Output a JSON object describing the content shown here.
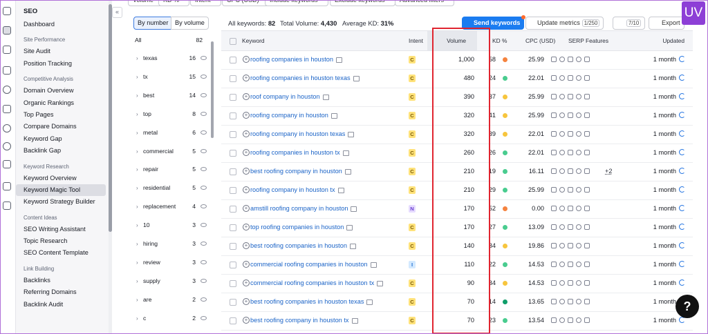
{
  "top_filters": [
    "Volume",
    "KD %",
    "Intent",
    "CPC (USD)",
    "Include keywords",
    "Exclude keywords",
    "Advanced filters"
  ],
  "sidebar": {
    "title": "SEO",
    "top_item": "Dashboard",
    "sections": [
      {
        "heading": "Site Performance",
        "items": [
          "Site Audit",
          "Position Tracking"
        ]
      },
      {
        "heading": "Competitive Analysis",
        "items": [
          "Domain Overview",
          "Organic Rankings",
          "Top Pages",
          "Compare Domains",
          "Keyword Gap",
          "Backlink Gap"
        ]
      },
      {
        "heading": "Keyword Research",
        "items": [
          "Keyword Overview",
          "Keyword Magic Tool",
          "Keyword Strategy Builder"
        ]
      },
      {
        "heading": "Content Ideas",
        "items": [
          "SEO Writing Assistant",
          "Topic Research",
          "SEO Content Template"
        ]
      },
      {
        "heading": "Link Building",
        "items": [
          "Backlinks",
          "Referring Domains",
          "Backlink Audit"
        ]
      }
    ],
    "active": "Keyword Magic Tool"
  },
  "groups": {
    "tabs": [
      "By number",
      "By volume"
    ],
    "all_label": "All",
    "all_count": "82",
    "rows": [
      [
        "texas",
        "16"
      ],
      [
        "tx",
        "15"
      ],
      [
        "best",
        "14"
      ],
      [
        "top",
        "8"
      ],
      [
        "metal",
        "6"
      ],
      [
        "commercial",
        "5"
      ],
      [
        "repair",
        "5"
      ],
      [
        "residential",
        "5"
      ],
      [
        "replacement",
        "4"
      ],
      [
        "10",
        "3"
      ],
      [
        "hiring",
        "3"
      ],
      [
        "review",
        "3"
      ],
      [
        "supply",
        "3"
      ],
      [
        "are",
        "2"
      ],
      [
        "c",
        "2"
      ]
    ]
  },
  "summary": {
    "all_keywords_label": "All keywords:",
    "all_keywords": "82",
    "total_volume_label": "Total Volume:",
    "total_volume": "4,430",
    "avg_kd_label": "Average KD:",
    "avg_kd": "31%"
  },
  "toolbar": {
    "send": "Send keywords",
    "update": "Update metrics",
    "update_count": "1/250",
    "settings_count": "7/10",
    "export": "Export"
  },
  "table": {
    "columns": [
      "Keyword",
      "Intent",
      "Volume",
      "KD %",
      "CPC (USD)",
      "SERP Features",
      "Updated"
    ],
    "rows": [
      {
        "keyword": "roofing companies in houston",
        "intent": "C",
        "volume": "1,000",
        "kd": "58",
        "kd_color": "#f5833f",
        "cpc": "25.99",
        "updated": "1 month"
      },
      {
        "keyword": "roofing companies in houston texas",
        "intent": "C",
        "volume": "480",
        "kd": "24",
        "kd_color": "#49cc8f",
        "cpc": "22.01",
        "updated": "1 month"
      },
      {
        "keyword": "roof company in houston",
        "intent": "C",
        "volume": "390",
        "kd": "37",
        "kd_color": "#f7c53d",
        "cpc": "25.99",
        "updated": "1 month"
      },
      {
        "keyword": "roofing company in houston",
        "intent": "C",
        "volume": "320",
        "kd": "41",
        "kd_color": "#f7c53d",
        "cpc": "25.99",
        "updated": "1 month"
      },
      {
        "keyword": "roofing company in houston texas",
        "intent": "C",
        "volume": "320",
        "kd": "39",
        "kd_color": "#f7c53d",
        "cpc": "22.01",
        "updated": "1 month"
      },
      {
        "keyword": "roofing companies in houston tx",
        "intent": "C",
        "volume": "260",
        "kd": "26",
        "kd_color": "#49cc8f",
        "cpc": "22.01",
        "updated": "1 month"
      },
      {
        "keyword": "best roofing company in houston",
        "intent": "C",
        "volume": "210",
        "kd": "19",
        "kd_color": "#49cc8f",
        "cpc": "16.11",
        "serp_more": "+2",
        "updated": "1 month"
      },
      {
        "keyword": "roofing company in houston tx",
        "intent": "C",
        "volume": "210",
        "kd": "29",
        "kd_color": "#49cc8f",
        "cpc": "25.99",
        "updated": "1 month"
      },
      {
        "keyword": "amstill roofing company in houston",
        "intent": "N",
        "volume": "170",
        "kd": "52",
        "kd_color": "#f5833f",
        "cpc": "0.00",
        "updated": "1 month"
      },
      {
        "keyword": "top roofing companies in houston",
        "intent": "C",
        "volume": "170",
        "kd": "27",
        "kd_color": "#49cc8f",
        "cpc": "13.09",
        "updated": "1 month"
      },
      {
        "keyword": "best roofing companies in houston",
        "intent": "C",
        "volume": "140",
        "kd": "34",
        "kd_color": "#f7c53d",
        "cpc": "19.86",
        "updated": "1 month"
      },
      {
        "keyword": "commercial roofing companies in houston",
        "intent": "I",
        "volume": "110",
        "kd": "22",
        "kd_color": "#49cc8f",
        "cpc": "14.53",
        "updated": "1 month"
      },
      {
        "keyword": "commercial roofing companies in houston tx",
        "intent": "C",
        "volume": "90",
        "kd": "34",
        "kd_color": "#f7c53d",
        "cpc": "14.53",
        "updated": "1 month"
      },
      {
        "keyword": "best roofing companies in houston texas",
        "intent": "C",
        "volume": "70",
        "kd": "14",
        "kd_color": "#0f9e6a",
        "cpc": "13.65",
        "updated": "1 month"
      },
      {
        "keyword": "best roofing company in houston tx",
        "intent": "C",
        "volume": "70",
        "kd": "23",
        "kd_color": "#49cc8f",
        "cpc": "13.54",
        "updated": "1 month"
      }
    ]
  },
  "logo": "UV",
  "help": "?"
}
